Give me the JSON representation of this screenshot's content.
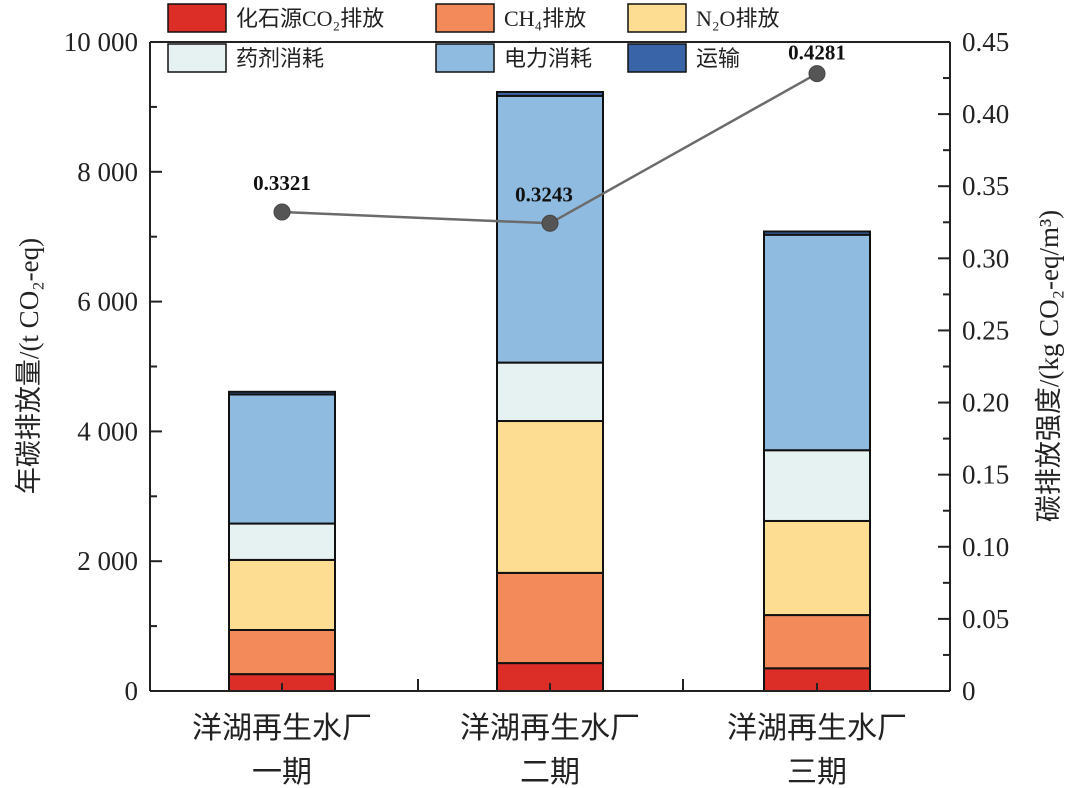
{
  "chart_data": {
    "type": "bar",
    "stacked": true,
    "categories": [
      {
        "line1": "洋湖再生水厂",
        "line2": "一期"
      },
      {
        "line1": "洋湖再生水厂",
        "line2": "二期"
      },
      {
        "line1": "洋湖再生水厂",
        "line2": "三期"
      }
    ],
    "series": [
      {
        "name": "化石源CO₂排放",
        "color": "#dc2d27",
        "values": [
          260,
          430,
          350
        ]
      },
      {
        "name": "CH₄排放",
        "color": "#f28b59",
        "values": [
          680,
          1390,
          820
        ]
      },
      {
        "name": "N₂O排放",
        "color": "#fcdd92",
        "values": [
          1080,
          2340,
          1450
        ]
      },
      {
        "name": "药剂消耗",
        "color": "#e6f2f1",
        "values": [
          560,
          900,
          1090
        ]
      },
      {
        "name": "电力消耗",
        "color": "#8fbbe0",
        "values": [
          1990,
          4110,
          3320
        ]
      },
      {
        "name": "运输",
        "color": "#3a64a8",
        "values": [
          40,
          60,
          50
        ]
      }
    ],
    "line_series": {
      "axis": "right",
      "color": "#6b6b6b",
      "values": [
        0.3321,
        0.3243,
        0.4281
      ],
      "labels": [
        "0.3321",
        "0.3243",
        "0.4281"
      ]
    },
    "ylabel": "年碳排放量/(t CO₂-eq)",
    "ylim": [
      0,
      10000
    ],
    "yticks": [
      "0",
      "2 000",
      "4 000",
      "6 000",
      "8 000",
      "10 000"
    ],
    "yticks_values": [
      0,
      2000,
      4000,
      6000,
      8000,
      10000
    ],
    "y2label": "碳排放强度/(kg CO₂-eq/m³)",
    "y2lim": [
      0,
      0.45
    ],
    "y2ticks": [
      "0",
      "0.05",
      "0.10",
      "0.15",
      "0.20",
      "0.25",
      "0.30",
      "0.35",
      "0.40",
      "0.45"
    ],
    "y2ticks_values": [
      0,
      0.05,
      0.1,
      0.15,
      0.2,
      0.25,
      0.3,
      0.35,
      0.4,
      0.45
    ],
    "legend_position": "top",
    "grid": false
  }
}
